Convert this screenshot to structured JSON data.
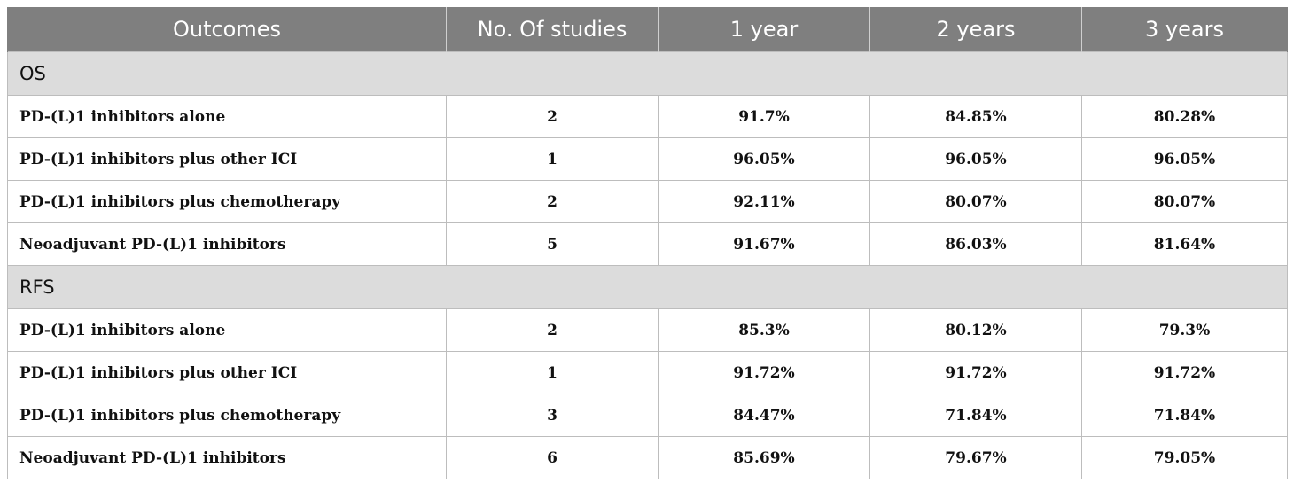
{
  "table": {
    "headers": [
      "Outcomes",
      "No. Of studies",
      "1 year",
      "2 years",
      "3 years"
    ],
    "sections": [
      {
        "title": "OS",
        "rows": [
          {
            "outcome": "PD-(L)1 inhibitors alone",
            "studies": "2",
            "y1": "91.7%",
            "y2": "84.85%",
            "y3": "80.28%"
          },
          {
            "outcome": "PD-(L)1 inhibitors plus other ICI",
            "studies": "1",
            "y1": "96.05%",
            "y2": "96.05%",
            "y3": "96.05%"
          },
          {
            "outcome": "PD-(L)1 inhibitors plus chemotherapy",
            "studies": "2",
            "y1": "92.11%",
            "y2": "80.07%",
            "y3": "80.07%"
          },
          {
            "outcome": "Neoadjuvant PD-(L)1 inhibitors",
            "studies": "5",
            "y1": "91.67%",
            "y2": "86.03%",
            "y3": "81.64%"
          }
        ]
      },
      {
        "title": "RFS",
        "rows": [
          {
            "outcome": "PD-(L)1 inhibitors alone",
            "studies": "2",
            "y1": "85.3%",
            "y2": "80.12%",
            "y3": "79.3%"
          },
          {
            "outcome": "PD-(L)1 inhibitors plus other ICI",
            "studies": "1",
            "y1": "91.72%",
            "y2": "91.72%",
            "y3": "91.72%"
          },
          {
            "outcome": "PD-(L)1 inhibitors plus chemotherapy",
            "studies": "3",
            "y1": "84.47%",
            "y2": "71.84%",
            "y3": "71.84%"
          },
          {
            "outcome": "Neoadjuvant PD-(L)1 inhibitors",
            "studies": "6",
            "y1": "85.69%",
            "y2": "79.67%",
            "y3": "79.05%"
          }
        ]
      }
    ]
  }
}
